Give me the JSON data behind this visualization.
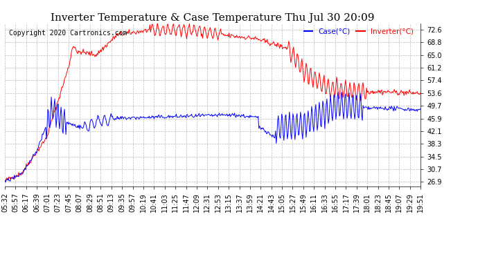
{
  "title": "Inverter Temperature & Case Temperature Thu Jul 30 20:09",
  "copyright": "Copyright 2020 Cartronics.com",
  "legend_labels": [
    "Case(°C)",
    "Inverter(°C)"
  ],
  "legend_colors": [
    "blue",
    "red"
  ],
  "yticks": [
    26.9,
    30.7,
    34.5,
    38.3,
    42.1,
    45.9,
    49.7,
    53.6,
    57.4,
    61.2,
    65.0,
    68.8,
    72.6
  ],
  "ylim": [
    25.5,
    74.5
  ],
  "background_color": "#ffffff",
  "plot_bg_color": "#ffffff",
  "grid_color": "#bbbbbb",
  "title_fontsize": 11,
  "tick_fontsize": 7,
  "copyright_fontsize": 7
}
